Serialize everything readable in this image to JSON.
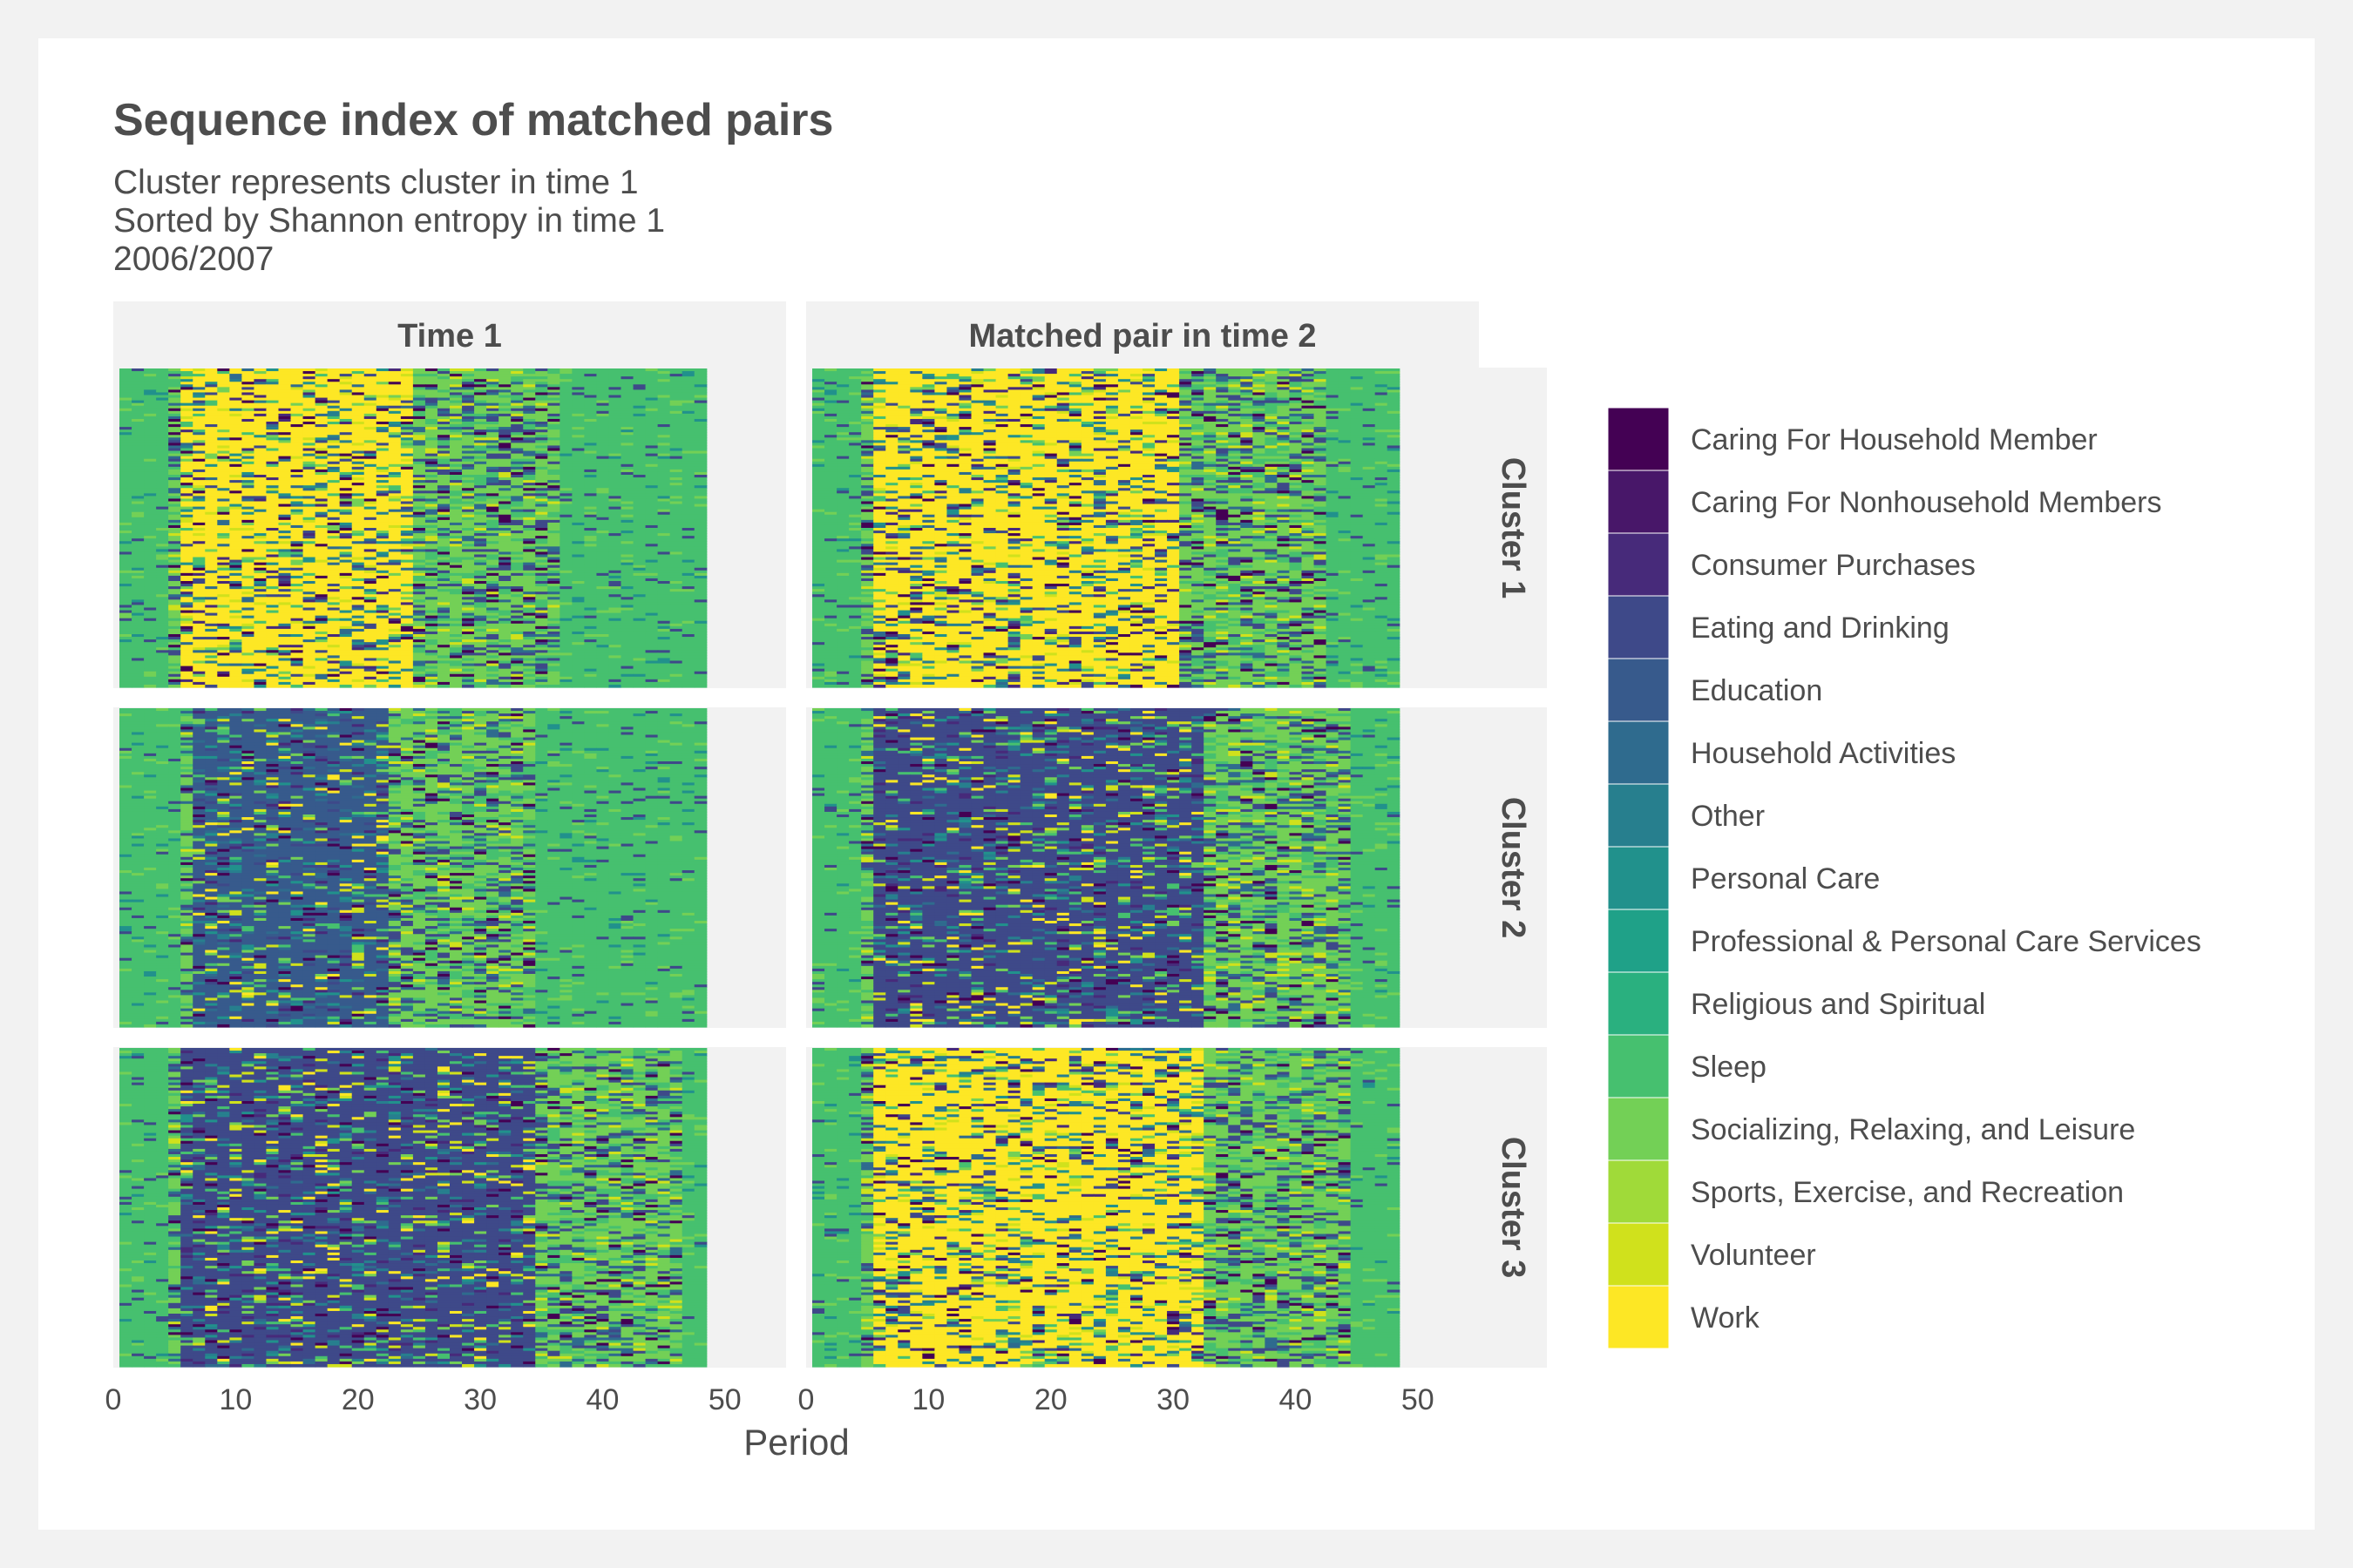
{
  "chart_data": {
    "type": "heatmap",
    "title": "Sequence index of matched pairs",
    "subtitle_lines": [
      "Cluster represents cluster in time 1",
      "Sorted by Shannon entropy in time 1",
      "2006/2007"
    ],
    "xlabel": "Period",
    "ylabel": "",
    "xlim": [
      0,
      55
    ],
    "x_ticks": [
      0,
      10,
      20,
      30,
      40,
      50
    ],
    "data_x_range": [
      1,
      48
    ],
    "grid": false,
    "legend_placement": "right",
    "columns": [
      "Time 1",
      "Matched pair in time 2"
    ],
    "rows": [
      "Cluster 1",
      "Cluster 2",
      "Cluster 3"
    ],
    "states": [
      {
        "name": "Caring For Household Member",
        "color": "#440154"
      },
      {
        "name": "Caring For Nonhousehold Members",
        "color": "#481769"
      },
      {
        "name": "Consumer Purchases",
        "color": "#472a7a"
      },
      {
        "name": "Eating and Drinking",
        "color": "#3e4989"
      },
      {
        "name": "Education",
        "color": "#375a8c"
      },
      {
        "name": "Household Activities",
        "color": "#2f6b8e"
      },
      {
        "name": "Other",
        "color": "#277f8e"
      },
      {
        "name": "Personal Care",
        "color": "#21918c"
      },
      {
        "name": "Professional & Personal Care Services",
        "color": "#1fa188"
      },
      {
        "name": "Religious and Spiritual",
        "color": "#2ab07f"
      },
      {
        "name": "Sleep",
        "color": "#46c06f"
      },
      {
        "name": "Socializing, Relaxing, and Leisure",
        "color": "#73d056"
      },
      {
        "name": "Sports, Exercise, and Recreation",
        "color": "#a0da39"
      },
      {
        "name": "Volunteer",
        "color": "#d0e11c"
      },
      {
        "name": "Work",
        "color": "#fde725"
      }
    ],
    "sequence_patterns": [
      {
        "column": "Time 1",
        "row": "Cluster 1",
        "dominant_state": "Work",
        "dominant_periods": [
          6,
          24
        ]
      },
      {
        "column": "Time 1",
        "row": "Cluster 2",
        "dominant_state": "Education",
        "dominant_periods": [
          7,
          22
        ]
      },
      {
        "column": "Time 1",
        "row": "Cluster 3",
        "dominant_state": "Eating and Drinking",
        "dominant_periods": [
          6,
          34
        ]
      },
      {
        "column": "Matched pair in time 2",
        "row": "Cluster 1",
        "dominant_state": "Work",
        "dominant_periods": [
          6,
          30
        ]
      },
      {
        "column": "Matched pair in time 2",
        "row": "Cluster 2",
        "dominant_state": "Eating and Drinking",
        "dominant_periods": [
          6,
          32
        ]
      },
      {
        "column": "Matched pair in time 2",
        "row": "Cluster 3",
        "dominant_state": "Work",
        "dominant_periods": [
          6,
          32
        ]
      }
    ]
  }
}
